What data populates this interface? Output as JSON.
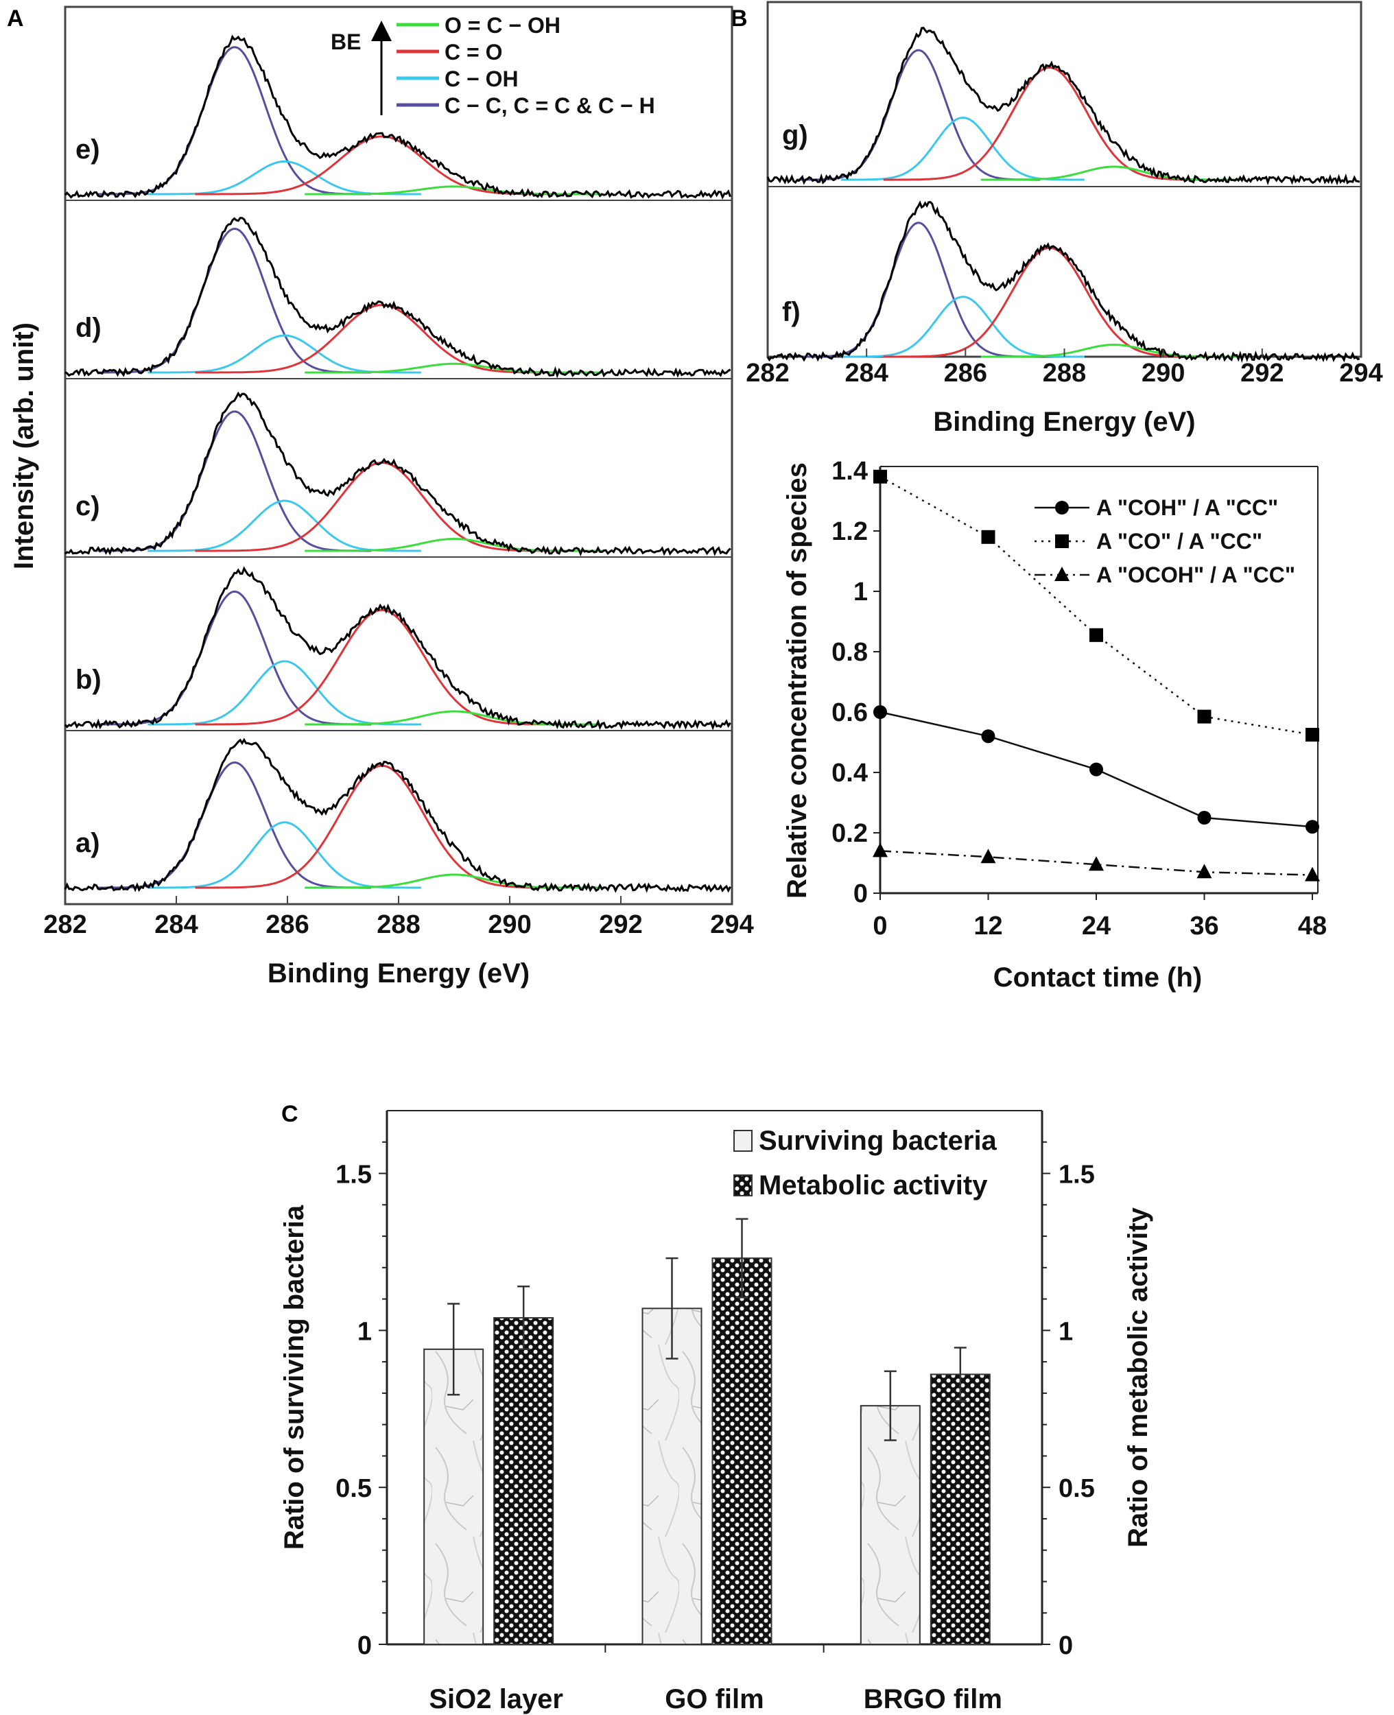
{
  "panel_labels": {
    "a": "A",
    "b": "B",
    "c": "C"
  },
  "chart_data": [
    {
      "type": "line",
      "id": "xps-A",
      "xlabel": "Binding Energy (eV)",
      "ylabel": "Intensity (arb. unit)",
      "xlim": [
        282,
        294
      ],
      "xticks": [
        282,
        284,
        286,
        288,
        290,
        292,
        294
      ],
      "legend": {
        "arrow_label": "BE",
        "entries": [
          {
            "name": "O = C − OH",
            "color": "#3ddc3d"
          },
          {
            "name": "C = O",
            "color": "#e0343a"
          },
          {
            "name": "C − OH",
            "color": "#3cc8ec"
          },
          {
            "name": "C − C, C = C & C − H",
            "color": "#55509e"
          }
        ],
        "placement": "top-right"
      },
      "components": [
        {
          "name": "C-C",
          "center": 285.05,
          "sigma": 0.55
        },
        {
          "name": "C-OH",
          "center": 285.95,
          "sigma": 0.55
        },
        {
          "name": "C=O",
          "center": 287.7,
          "sigma": 0.75
        },
        {
          "name": "O=C-OH",
          "center": 289.0,
          "sigma": 0.6
        }
      ],
      "spectra": [
        {
          "label": "e)",
          "amplitudes": [
            135,
            30,
            53,
            7
          ]
        },
        {
          "label": "d)",
          "amplitudes": [
            132,
            34,
            62,
            8
          ]
        },
        {
          "label": "c)",
          "amplitudes": [
            128,
            46,
            81,
            11
          ]
        },
        {
          "label": "b)",
          "amplitudes": [
            122,
            58,
            105,
            12
          ]
        },
        {
          "label": "a)",
          "amplitudes": [
            115,
            60,
            112,
            12
          ]
        }
      ]
    },
    {
      "type": "line",
      "id": "xps-B",
      "xlabel": "Binding Energy (eV)",
      "xlim": [
        282,
        294
      ],
      "xticks": [
        282,
        284,
        286,
        288,
        290,
        292,
        294
      ],
      "spectra": [
        {
          "label": "g)",
          "amplitudes": [
            119,
            57,
            103,
            12
          ]
        },
        {
          "label": "f)",
          "amplitudes": [
            123,
            55,
            100,
            11
          ]
        }
      ]
    },
    {
      "type": "line",
      "id": "concentration",
      "xlabel": "Contact time (h)",
      "ylabel": "Relative concentration of species",
      "x": [
        0,
        12,
        24,
        36,
        48
      ],
      "xlim": [
        0,
        48
      ],
      "ylim": [
        0,
        1.4
      ],
      "yticks": [
        "0",
        "0.2",
        "0.4",
        "0.6",
        "0.8",
        "1",
        "1.2",
        "1.4"
      ],
      "yticks_values": [
        0,
        0.2,
        0.4,
        0.6,
        0.8,
        1,
        1.2,
        1.4
      ],
      "xticks": [
        "0",
        "12",
        "24",
        "36",
        "48"
      ],
      "legend_placement": "top-right",
      "series": [
        {
          "name": "A \"COH\" / A \"CC\"",
          "marker": "circle",
          "style": "solid",
          "values": [
            0.6,
            0.52,
            0.41,
            0.25,
            0.22
          ]
        },
        {
          "name": "A \"CO\" / A \"CC\"",
          "marker": "square",
          "style": "dotted",
          "values": [
            1.38,
            1.18,
            0.855,
            0.585,
            0.525
          ]
        },
        {
          "name": "A \"OCOH\" / A \"CC\"",
          "marker": "triangle",
          "style": "dashdot",
          "values": [
            0.14,
            0.12,
            0.095,
            0.07,
            0.06
          ]
        }
      ]
    },
    {
      "type": "bar",
      "id": "bacteria",
      "categories": [
        "SiO2 layer",
        "GO film",
        "BRGO film"
      ],
      "ylabel": "Ratio of surviving bacteria",
      "y2label": "Ratio of metabolic activity",
      "ylim": [
        0,
        1.7
      ],
      "yticks": [
        "0",
        "0.5",
        "1",
        "1.5"
      ],
      "yticks_values": [
        0,
        0.5,
        1,
        1.5
      ],
      "legend_placement": "top-right",
      "series": [
        {
          "name": "Surviving bacteria",
          "values": [
            0.94,
            1.07,
            0.76
          ],
          "errors": [
            0.145,
            0.16,
            0.11
          ]
        },
        {
          "name": "Metabolic activity",
          "values": [
            1.04,
            1.23,
            0.86
          ],
          "errors": [
            0.1,
            0.125,
            0.085
          ]
        }
      ]
    }
  ]
}
